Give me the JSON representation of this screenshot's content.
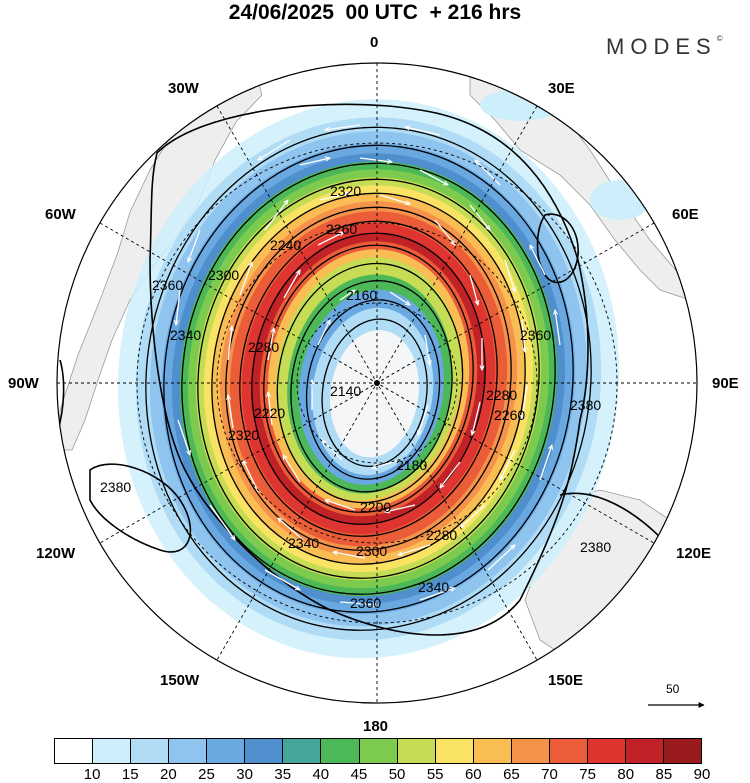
{
  "title": "24/06/2025  00 UTC  + 216 hrs",
  "brand": "MODES",
  "brand_mark": "©",
  "longitude_labels": {
    "top": "0",
    "bottom": "180",
    "left": "90W",
    "right": "90E",
    "upper_left": "30W",
    "upper_right": "30E",
    "mid_left": "60W",
    "mid_right": "60E",
    "lower_mid_left": "120W",
    "lower_mid_right": "120E",
    "bottom_left": "150W",
    "bottom_right": "150E"
  },
  "vector_reference": {
    "value": "50"
  },
  "contour_labels": [
    "2320",
    "2260",
    "2240",
    "2160",
    "2140",
    "2180",
    "2200",
    "2260",
    "2280",
    "2300",
    "2340",
    "2360",
    "2380",
    "2380",
    "2380",
    "2360",
    "2340",
    "2320",
    "2300",
    "2280",
    "2280",
    "2220",
    "2360",
    "2340"
  ],
  "colorbar": {
    "tick_labels": [
      "10",
      "15",
      "20",
      "25",
      "30",
      "35",
      "40",
      "45",
      "50",
      "55",
      "60",
      "65",
      "70",
      "75",
      "80",
      "85",
      "90"
    ],
    "colors": [
      "#ffffff",
      "#cdeefb",
      "#b0dcf6",
      "#8fc4ef",
      "#6aa8e2",
      "#4f8fcd",
      "#45a59a",
      "#4db857",
      "#7ccb4f",
      "#c5dc54",
      "#fae264",
      "#f9bd54",
      "#f6934a",
      "#eb5d38",
      "#de3530",
      "#c12228",
      "#991b1e"
    ]
  },
  "legend_title": ""
}
